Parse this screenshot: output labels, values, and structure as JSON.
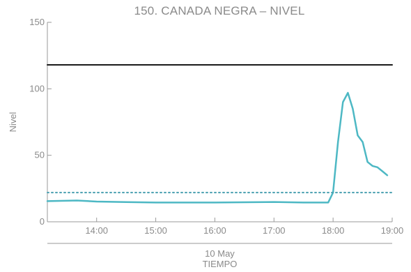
{
  "chart_data": {
    "type": "line",
    "title": "150. CANADA NEGRA – NIVEL",
    "xlabel": "TIEMPO",
    "ylabel": "Nivel",
    "date_label": "10 May",
    "xlim": [
      "13:10",
      "19:00"
    ],
    "ylim": [
      0,
      150
    ],
    "x_ticks": [
      "14:00",
      "15:00",
      "16:00",
      "17:00",
      "18:00",
      "19:00"
    ],
    "y_ticks": [
      0,
      50,
      100,
      150
    ],
    "grid": false,
    "series": [
      {
        "color": "#4db8c4",
        "style": "solid",
        "x": [
          "13:10",
          "13:40",
          "14:00",
          "14:30",
          "15:00",
          "15:30",
          "16:00",
          "16:30",
          "17:00",
          "17:30",
          "17:55",
          "18:00",
          "18:05",
          "18:10",
          "18:15",
          "18:20",
          "18:25",
          "18:30",
          "18:35",
          "18:40",
          "18:45",
          "18:50",
          "18:55"
        ],
        "values": [
          15.5,
          16,
          15.2,
          14.8,
          14.5,
          14.5,
          14.5,
          14.7,
          14.9,
          14.5,
          14.5,
          22,
          60,
          90,
          97,
          85,
          65,
          60,
          45,
          42,
          41,
          38,
          35
        ]
      },
      {
        "color": "#1a1a1a",
        "style": "solid",
        "x": [
          "13:10",
          "19:00"
        ],
        "values": [
          118,
          118
        ]
      },
      {
        "color": "#4aa0b0",
        "style": "dotted",
        "x": [
          "13:10",
          "19:00"
        ],
        "values": [
          22,
          22
        ]
      }
    ]
  }
}
